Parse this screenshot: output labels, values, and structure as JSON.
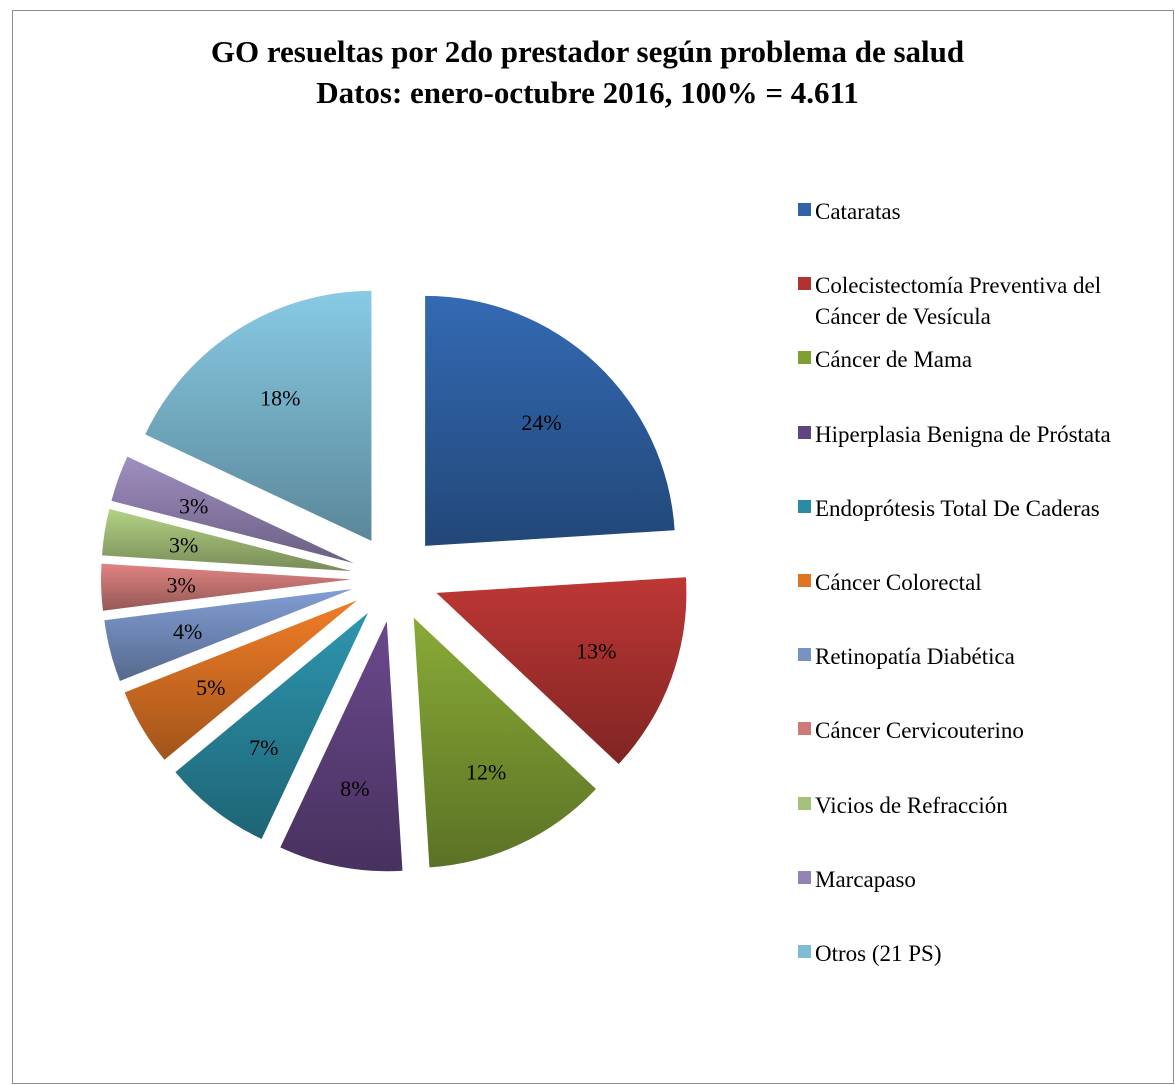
{
  "chart_data": {
    "type": "pie",
    "title": "GO resueltas por 2do prestador según problema de salud",
    "subtitle": "Datos: enero-octubre 2016, 100% = 4.611",
    "legend_position": "right",
    "slices": [
      {
        "label": "Cataratas",
        "value": 24,
        "value_label": "24%",
        "color": "#2f62a6"
      },
      {
        "label": "Colecistectomía Preventiva del Cáncer de Vesícula",
        "value": 13,
        "value_label": "13%",
        "color": "#b03331"
      },
      {
        "label": "Cáncer de Mama",
        "value": 12,
        "value_label": "12%",
        "color": "#7f9e33"
      },
      {
        "label": "Hiperplasia Benigna de Próstata",
        "value": 8,
        "value_label": "8%",
        "color": "#634483"
      },
      {
        "label": "Endoprótesis Total De Caderas",
        "value": 7,
        "value_label": "7%",
        "color": "#2a8ba2"
      },
      {
        "label": "Cáncer Colorectal",
        "value": 5,
        "value_label": "5%",
        "color": "#df7424"
      },
      {
        "label": "Retinopatía Diabética",
        "value": 4,
        "value_label": "4%",
        "color": "#7892c4"
      },
      {
        "label": "Cáncer Cervicouterino",
        "value": 3,
        "value_label": "3%",
        "color": "#cf7a78"
      },
      {
        "label": "Vicios de Refracción",
        "value": 3,
        "value_label": "3%",
        "color": "#a6c27a"
      },
      {
        "label": "Marcapaso",
        "value": 3,
        "value_label": "3%",
        "color": "#9484b4"
      },
      {
        "label": "Otros (21 PS)",
        "value": 18,
        "value_label": "18%",
        "color": "#7ebcd4"
      }
    ]
  }
}
